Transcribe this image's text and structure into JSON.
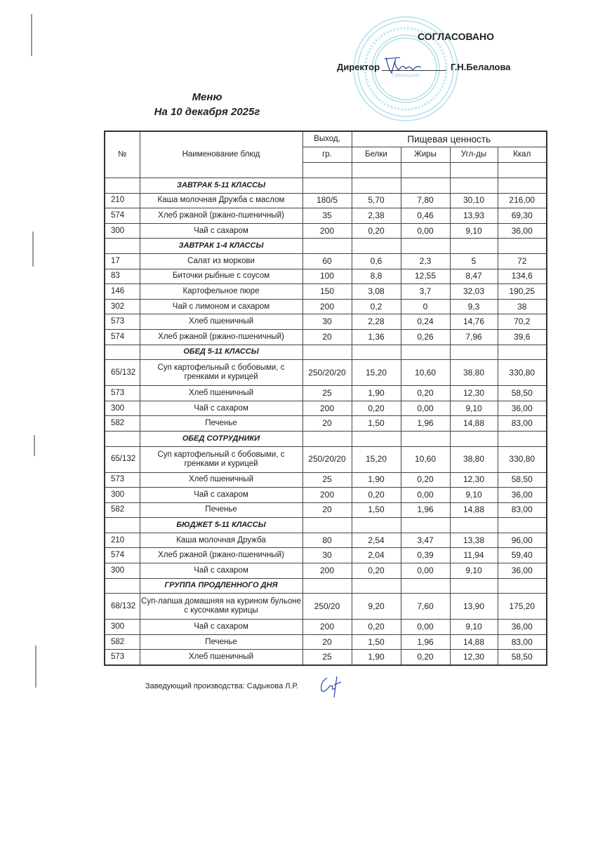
{
  "header": {
    "approved": "СОГЛАСОВАНО",
    "director_label": "Директор",
    "director_name": "Г.Н.Белалова",
    "stamp_text": "ГИМНАЗИЯ"
  },
  "title": {
    "line1": "Меню",
    "line2": "На 10 декабря 2025г"
  },
  "table": {
    "headers": {
      "num": "№",
      "name": "Наименование блюд",
      "yield_top": "Выход,",
      "yield_bottom": "гр.",
      "nutrition": "Пищевая ценность",
      "protein": "Белки",
      "fat": "Жиры",
      "carbs": "Угл-ды",
      "kcal": "Ккал"
    },
    "rows": [
      {
        "section": "ЗАВТРАК 5-11 КЛАССЫ"
      },
      {
        "num": "210",
        "name": "Каша молочная Дружба с маслом",
        "yield": "180/5",
        "protein": "5,70",
        "fat": "7,80",
        "carbs": "30,10",
        "kcal": "216,00"
      },
      {
        "num": "574",
        "name": "Хлеб ржаной (ржано-пшеничный)",
        "yield": "35",
        "protein": "2,38",
        "fat": "0,46",
        "carbs": "13,93",
        "kcal": "69,30"
      },
      {
        "num": "300",
        "name": "Чай с сахаром",
        "yield": "200",
        "protein": "0,20",
        "fat": "0,00",
        "carbs": "9,10",
        "kcal": "36,00"
      },
      {
        "section": "ЗАВТРАК 1-4 КЛАССЫ"
      },
      {
        "num": "17",
        "name": "Салат из моркови",
        "yield": "60",
        "protein": "0,6",
        "fat": "2,3",
        "carbs": "5",
        "kcal": "72"
      },
      {
        "num": "83",
        "name": "Биточки рыбные с соусом",
        "yield": "100",
        "protein": "8,8",
        "fat": "12,55",
        "carbs": "8,47",
        "kcal": "134,6"
      },
      {
        "num": "146",
        "name": "Картофельное пюре",
        "yield": "150",
        "protein": "3,08",
        "fat": "3,7",
        "carbs": "32,03",
        "kcal": "190,25"
      },
      {
        "num": "302",
        "name": "Чай с лимоном и сахаром",
        "yield": "200",
        "protein": "0,2",
        "fat": "0",
        "carbs": "9,3",
        "kcal": "38"
      },
      {
        "num": "573",
        "name": "Хлеб пшеничный",
        "yield": "30",
        "protein": "2,28",
        "fat": "0,24",
        "carbs": "14,76",
        "kcal": "70,2"
      },
      {
        "num": "574",
        "name": "Хлеб ржаной (ржано-пшеничный)",
        "yield": "20",
        "protein": "1,36",
        "fat": "0,26",
        "carbs": "7,96",
        "kcal": "39,6"
      },
      {
        "section": "ОБЕД 5-11 КЛАССЫ"
      },
      {
        "num": "65/132",
        "name": "Суп картофельный с бобовыми, с гренками и курицей",
        "yield": "250/20/20",
        "protein": "15,20",
        "fat": "10,60",
        "carbs": "38,80",
        "kcal": "330,80",
        "double": true
      },
      {
        "num": "573",
        "name": "Хлеб пшеничный",
        "yield": "25",
        "protein": "1,90",
        "fat": "0,20",
        "carbs": "12,30",
        "kcal": "58,50"
      },
      {
        "num": "300",
        "name": "Чай с сахаром",
        "yield": "200",
        "protein": "0,20",
        "fat": "0,00",
        "carbs": "9,10",
        "kcal": "36,00"
      },
      {
        "num": "582",
        "name": "Печенье",
        "yield": "20",
        "protein": "1,50",
        "fat": "1,96",
        "carbs": "14,88",
        "kcal": "83,00"
      },
      {
        "section": "ОБЕД СОТРУДНИКИ"
      },
      {
        "num": "65/132",
        "name": "Суп картофельный с бобовыми, с гренками и курицей",
        "yield": "250/20/20",
        "protein": "15,20",
        "fat": "10,60",
        "carbs": "38,80",
        "kcal": "330,80",
        "double": true
      },
      {
        "num": "573",
        "name": "Хлеб пшеничный",
        "yield": "25",
        "protein": "1,90",
        "fat": "0,20",
        "carbs": "12,30",
        "kcal": "58,50"
      },
      {
        "num": "300",
        "name": "Чай с сахаром",
        "yield": "200",
        "protein": "0,20",
        "fat": "0,00",
        "carbs": "9,10",
        "kcal": "36,00"
      },
      {
        "num": "582",
        "name": "Печенье",
        "yield": "20",
        "protein": "1,50",
        "fat": "1,96",
        "carbs": "14,88",
        "kcal": "83,00"
      },
      {
        "section": "БЮДЖЕТ 5-11 КЛАССЫ"
      },
      {
        "num": "210",
        "name": "Каша молочная Дружба",
        "yield": "80",
        "protein": "2,54",
        "fat": "3,47",
        "carbs": "13,38",
        "kcal": "96,00"
      },
      {
        "num": "574",
        "name": "Хлеб ржаной (ржано-пшеничный)",
        "yield": "30",
        "protein": "2,04",
        "fat": "0,39",
        "carbs": "11,94",
        "kcal": "59,40"
      },
      {
        "num": "300",
        "name": "Чай с сахаром",
        "yield": "200",
        "protein": "0,20",
        "fat": "0,00",
        "carbs": "9,10",
        "kcal": "36,00"
      },
      {
        "section": "ГРУППА ПРОДЛЕННОГО ДНЯ"
      },
      {
        "num": "68/132",
        "name": "Суп-лапша домашняя на курином бульоне с кусочками курицы",
        "yield": "250/20",
        "protein": "9,20",
        "fat": "7,60",
        "carbs": "13,90",
        "kcal": "175,20",
        "double": true
      },
      {
        "num": "300",
        "name": "Чай с сахаром",
        "yield": "200",
        "protein": "0,20",
        "fat": "0,00",
        "carbs": "9,10",
        "kcal": "36,00"
      },
      {
        "num": "582",
        "name": "Печенье",
        "yield": "20",
        "protein": "1,50",
        "fat": "1,96",
        "carbs": "14,88",
        "kcal": "83,00"
      },
      {
        "num": "573",
        "name": "Хлеб пшеничный",
        "yield": "25",
        "protein": "1,90",
        "fat": "0,20",
        "carbs": "12,30",
        "kcal": "58,50"
      }
    ]
  },
  "footer": {
    "text": "Заведующий производства: Садыкова Л.Р."
  },
  "colors": {
    "stamp": "#9fd6e6",
    "signature": "#3a4aa8"
  }
}
